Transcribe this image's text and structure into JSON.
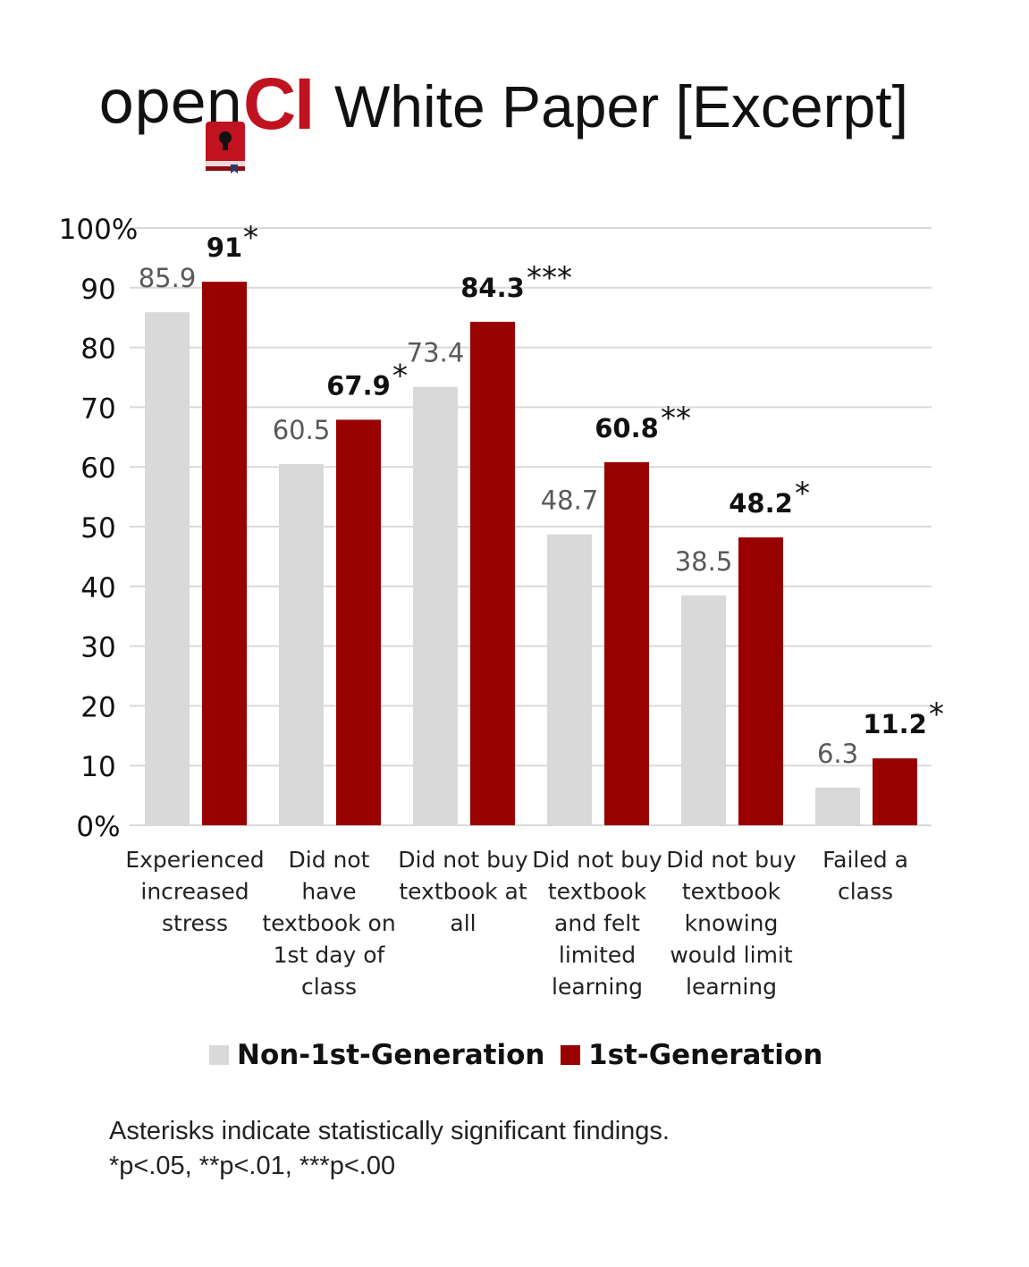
{
  "header": {
    "logo_text": "open",
    "logo_ci": "CI",
    "title": "White Paper [Excerpt]"
  },
  "colors": {
    "non_first_gen": "#d9d9d9",
    "first_gen": "#990000",
    "logo_red": "#c1121f",
    "grid": "#d9d9d9"
  },
  "chart_data": {
    "type": "bar",
    "categories": [
      [
        "Experienced",
        "increased",
        "stress"
      ],
      [
        "Did not",
        "have",
        "textbook on",
        "1st day of",
        "class"
      ],
      [
        "Did not buy",
        "textbook at",
        "all"
      ],
      [
        "Did not buy",
        "textbook",
        "and felt",
        "limited",
        "learning"
      ],
      [
        "Did not buy",
        "textbook",
        "knowing",
        "would limit",
        "learning"
      ],
      [
        "Failed a",
        "class"
      ]
    ],
    "series": [
      {
        "name": "Non-1st-Generation",
        "values": [
          85.9,
          60.5,
          73.4,
          48.7,
          38.5,
          6.3
        ],
        "labels": [
          "85.9",
          "60.5",
          "73.4",
          "48.7",
          "38.5",
          "6.3"
        ]
      },
      {
        "name": "1st-Generation",
        "values": [
          91,
          67.9,
          84.3,
          60.8,
          48.2,
          11.2
        ],
        "labels": [
          "91",
          "67.9",
          "84.3",
          "60.8",
          "48.2",
          "11.2"
        ],
        "significance": [
          "*",
          "*",
          "***",
          "**",
          "*",
          "*"
        ]
      }
    ],
    "yticks": [
      "0%",
      "10",
      "20",
      "30",
      "40",
      "50",
      "60",
      "70",
      "80",
      "90",
      "100%"
    ],
    "ylim": [
      0,
      100
    ],
    "grid": true,
    "legend_position": "bottom"
  },
  "legend": {
    "non_first_gen": "Non-1st-Generation",
    "first_gen": "1st-Generation"
  },
  "footnote": {
    "line1": "Asterisks indicate statistically significant findings.",
    "line2": "*p<.05, **p<.01, ***p<.00"
  }
}
